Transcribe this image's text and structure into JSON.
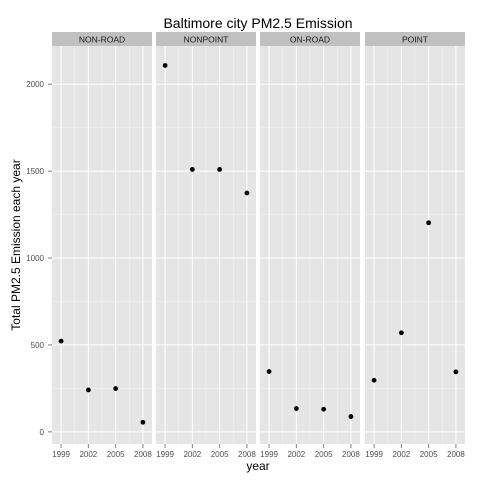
{
  "chart_data": {
    "type": "scatter",
    "title": "Baltimore city PM2.5 Emission",
    "xlabel": "year",
    "ylabel": "Total PM2.5 Emission each year",
    "x_ticks": [
      "1999",
      "2002",
      "2005",
      "2008"
    ],
    "y_ticks": [
      "0",
      "500",
      "1000",
      "1500",
      "2000"
    ],
    "ylim": [
      -70,
      2220
    ],
    "xlim": [
      1998.0,
      2009.0
    ],
    "grid": true,
    "legend": "none",
    "colors": {
      "panel_background": "#e5e5e5",
      "grid_major": "#ffffff",
      "strip_background": "#c0c0c0",
      "point": "#000000"
    },
    "panels": [
      {
        "name": "NON-ROAD",
        "x": [
          1999,
          2002,
          2005,
          2008
        ],
        "y": [
          522,
          241,
          249,
          55
        ]
      },
      {
        "name": "NONPOINT",
        "x": [
          1999,
          2002,
          2005,
          2008
        ],
        "y": [
          2108,
          1510,
          1510,
          1374
        ]
      },
      {
        "name": "ON-ROAD",
        "x": [
          1999,
          2002,
          2005,
          2008
        ],
        "y": [
          347,
          134,
          130,
          88
        ]
      },
      {
        "name": "POINT",
        "x": [
          1999,
          2002,
          2005,
          2008
        ],
        "y": [
          297,
          570,
          1203,
          345
        ]
      }
    ]
  }
}
